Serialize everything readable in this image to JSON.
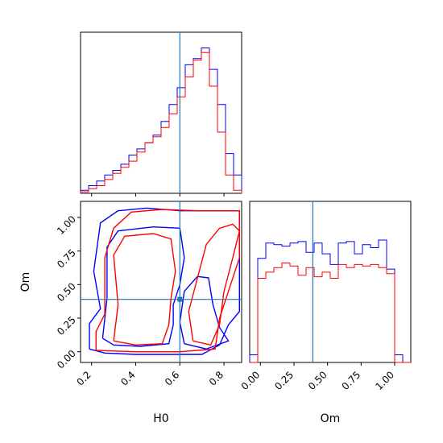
{
  "chart_data": {
    "type": "corner",
    "parameters": [
      "H0",
      "Om"
    ],
    "truth": {
      "H0": 0.6,
      "Om": 0.39
    },
    "colors": {
      "series_a": "#0000ff",
      "series_b": "#ff0000",
      "truth": "#1f77b4"
    },
    "x_ticks": {
      "H0": [
        "0.2",
        "0.4",
        "0.6",
        "0.8"
      ],
      "Om": [
        "0.00",
        "0.25",
        "0.50",
        "0.75",
        "1.00"
      ]
    },
    "y_ticks": {
      "Om": [
        "0.00",
        "0.25",
        "0.50",
        "0.75",
        "1.00"
      ]
    },
    "xlabels": {
      "H0": "H0",
      "Om": "Om"
    },
    "ylabels": {
      "Om": "Om"
    },
    "ranges": {
      "H0": [
        0.15,
        0.88
      ],
      "Om": [
        -0.08,
        1.12
      ]
    },
    "hist_H0": {
      "edges": [
        0.15,
        0.1865,
        0.223,
        0.2595,
        0.296,
        0.3325,
        0.369,
        0.4055,
        0.442,
        0.4785,
        0.515,
        0.5515,
        0.588,
        0.6245,
        0.661,
        0.6975,
        0.734,
        0.7705,
        0.807,
        0.8435,
        0.88
      ],
      "blue": [
        0.02,
        0.05,
        0.08,
        0.12,
        0.15,
        0.19,
        0.25,
        0.29,
        0.33,
        0.38,
        0.47,
        0.58,
        0.69,
        0.84,
        0.88,
        0.95,
        0.81,
        0.58,
        0.26,
        0.12
      ],
      "red": [
        0.01,
        0.03,
        0.05,
        0.09,
        0.13,
        0.17,
        0.21,
        0.27,
        0.33,
        0.37,
        0.43,
        0.52,
        0.63,
        0.76,
        0.87,
        0.92,
        0.7,
        0.4,
        0.12,
        0.02
      ]
    },
    "hist_Om": {
      "edges": [
        -0.08,
        -0.02,
        0.04,
        0.1,
        0.16,
        0.22,
        0.28,
        0.34,
        0.4,
        0.46,
        0.52,
        0.58,
        0.64,
        0.7,
        0.76,
        0.82,
        0.88,
        0.94,
        1.0,
        1.06,
        1.12
      ],
      "blue": [
        0.05,
        0.68,
        0.78,
        0.77,
        0.76,
        0.78,
        0.79,
        0.72,
        0.78,
        0.71,
        0.64,
        0.78,
        0.79,
        0.71,
        0.77,
        0.75,
        0.8,
        0.61,
        0.05,
        0.0
      ],
      "red": [
        0.0,
        0.55,
        0.59,
        0.62,
        0.65,
        0.63,
        0.57,
        0.62,
        0.56,
        0.59,
        0.55,
        0.64,
        0.62,
        0.64,
        0.63,
        0.64,
        0.62,
        0.58,
        0.0,
        0.0
      ]
    },
    "contours": {
      "blue_outer": [
        [
          0.19,
          0.02
        ],
        [
          0.19,
          0.21
        ],
        [
          0.24,
          0.32
        ],
        [
          0.21,
          0.6
        ],
        [
          0.24,
          0.96
        ],
        [
          0.32,
          1.05
        ],
        [
          0.45,
          1.07
        ],
        [
          0.6,
          1.05
        ],
        [
          0.76,
          1.05
        ],
        [
          0.87,
          1.05
        ],
        [
          0.87,
          0.3
        ],
        [
          0.82,
          0.2
        ],
        [
          0.78,
          0.05
        ],
        [
          0.7,
          -0.02
        ],
        [
          0.55,
          -0.02
        ],
        [
          0.4,
          -0.02
        ],
        [
          0.26,
          -0.01
        ],
        [
          0.19,
          0.02
        ]
      ],
      "blue_inner": [
        [
          0.25,
          0.1
        ],
        [
          0.27,
          0.4
        ],
        [
          0.27,
          0.78
        ],
        [
          0.32,
          0.9
        ],
        [
          0.48,
          0.93
        ],
        [
          0.6,
          0.92
        ],
        [
          0.62,
          0.7
        ],
        [
          0.6,
          0.5
        ],
        [
          0.57,
          0.35
        ],
        [
          0.57,
          0.2
        ],
        [
          0.55,
          0.06
        ],
        [
          0.42,
          0.04
        ],
        [
          0.3,
          0.05
        ],
        [
          0.25,
          0.1
        ]
      ],
      "blue_right": [
        [
          0.62,
          0.06
        ],
        [
          0.6,
          0.22
        ],
        [
          0.62,
          0.45
        ],
        [
          0.68,
          0.56
        ],
        [
          0.73,
          0.55
        ],
        [
          0.75,
          0.35
        ],
        [
          0.78,
          0.18
        ],
        [
          0.82,
          0.08
        ],
        [
          0.72,
          0.02
        ],
        [
          0.62,
          0.06
        ]
      ],
      "red_outer": [
        [
          0.22,
          0.01
        ],
        [
          0.22,
          0.15
        ],
        [
          0.26,
          0.28
        ],
        [
          0.26,
          0.7
        ],
        [
          0.3,
          0.92
        ],
        [
          0.38,
          1.04
        ],
        [
          0.52,
          1.06
        ],
        [
          0.68,
          1.05
        ],
        [
          0.82,
          1.05
        ],
        [
          0.87,
          1.05
        ],
        [
          0.87,
          0.7
        ],
        [
          0.82,
          0.45
        ],
        [
          0.78,
          0.25
        ],
        [
          0.76,
          0.02
        ],
        [
          0.6,
          0.0
        ],
        [
          0.4,
          0.0
        ],
        [
          0.22,
          0.01
        ]
      ],
      "red_inner": [
        [
          0.3,
          0.08
        ],
        [
          0.32,
          0.35
        ],
        [
          0.3,
          0.72
        ],
        [
          0.35,
          0.86
        ],
        [
          0.48,
          0.88
        ],
        [
          0.56,
          0.84
        ],
        [
          0.58,
          0.6
        ],
        [
          0.56,
          0.4
        ],
        [
          0.55,
          0.2
        ],
        [
          0.52,
          0.06
        ],
        [
          0.4,
          0.05
        ],
        [
          0.3,
          0.08
        ]
      ],
      "red_right": [
        [
          0.66,
          0.08
        ],
        [
          0.64,
          0.3
        ],
        [
          0.68,
          0.55
        ],
        [
          0.72,
          0.8
        ],
        [
          0.78,
          0.92
        ],
        [
          0.84,
          0.95
        ],
        [
          0.87,
          0.9
        ],
        [
          0.84,
          0.7
        ],
        [
          0.8,
          0.45
        ],
        [
          0.78,
          0.2
        ],
        [
          0.74,
          0.05
        ],
        [
          0.66,
          0.08
        ]
      ]
    }
  }
}
